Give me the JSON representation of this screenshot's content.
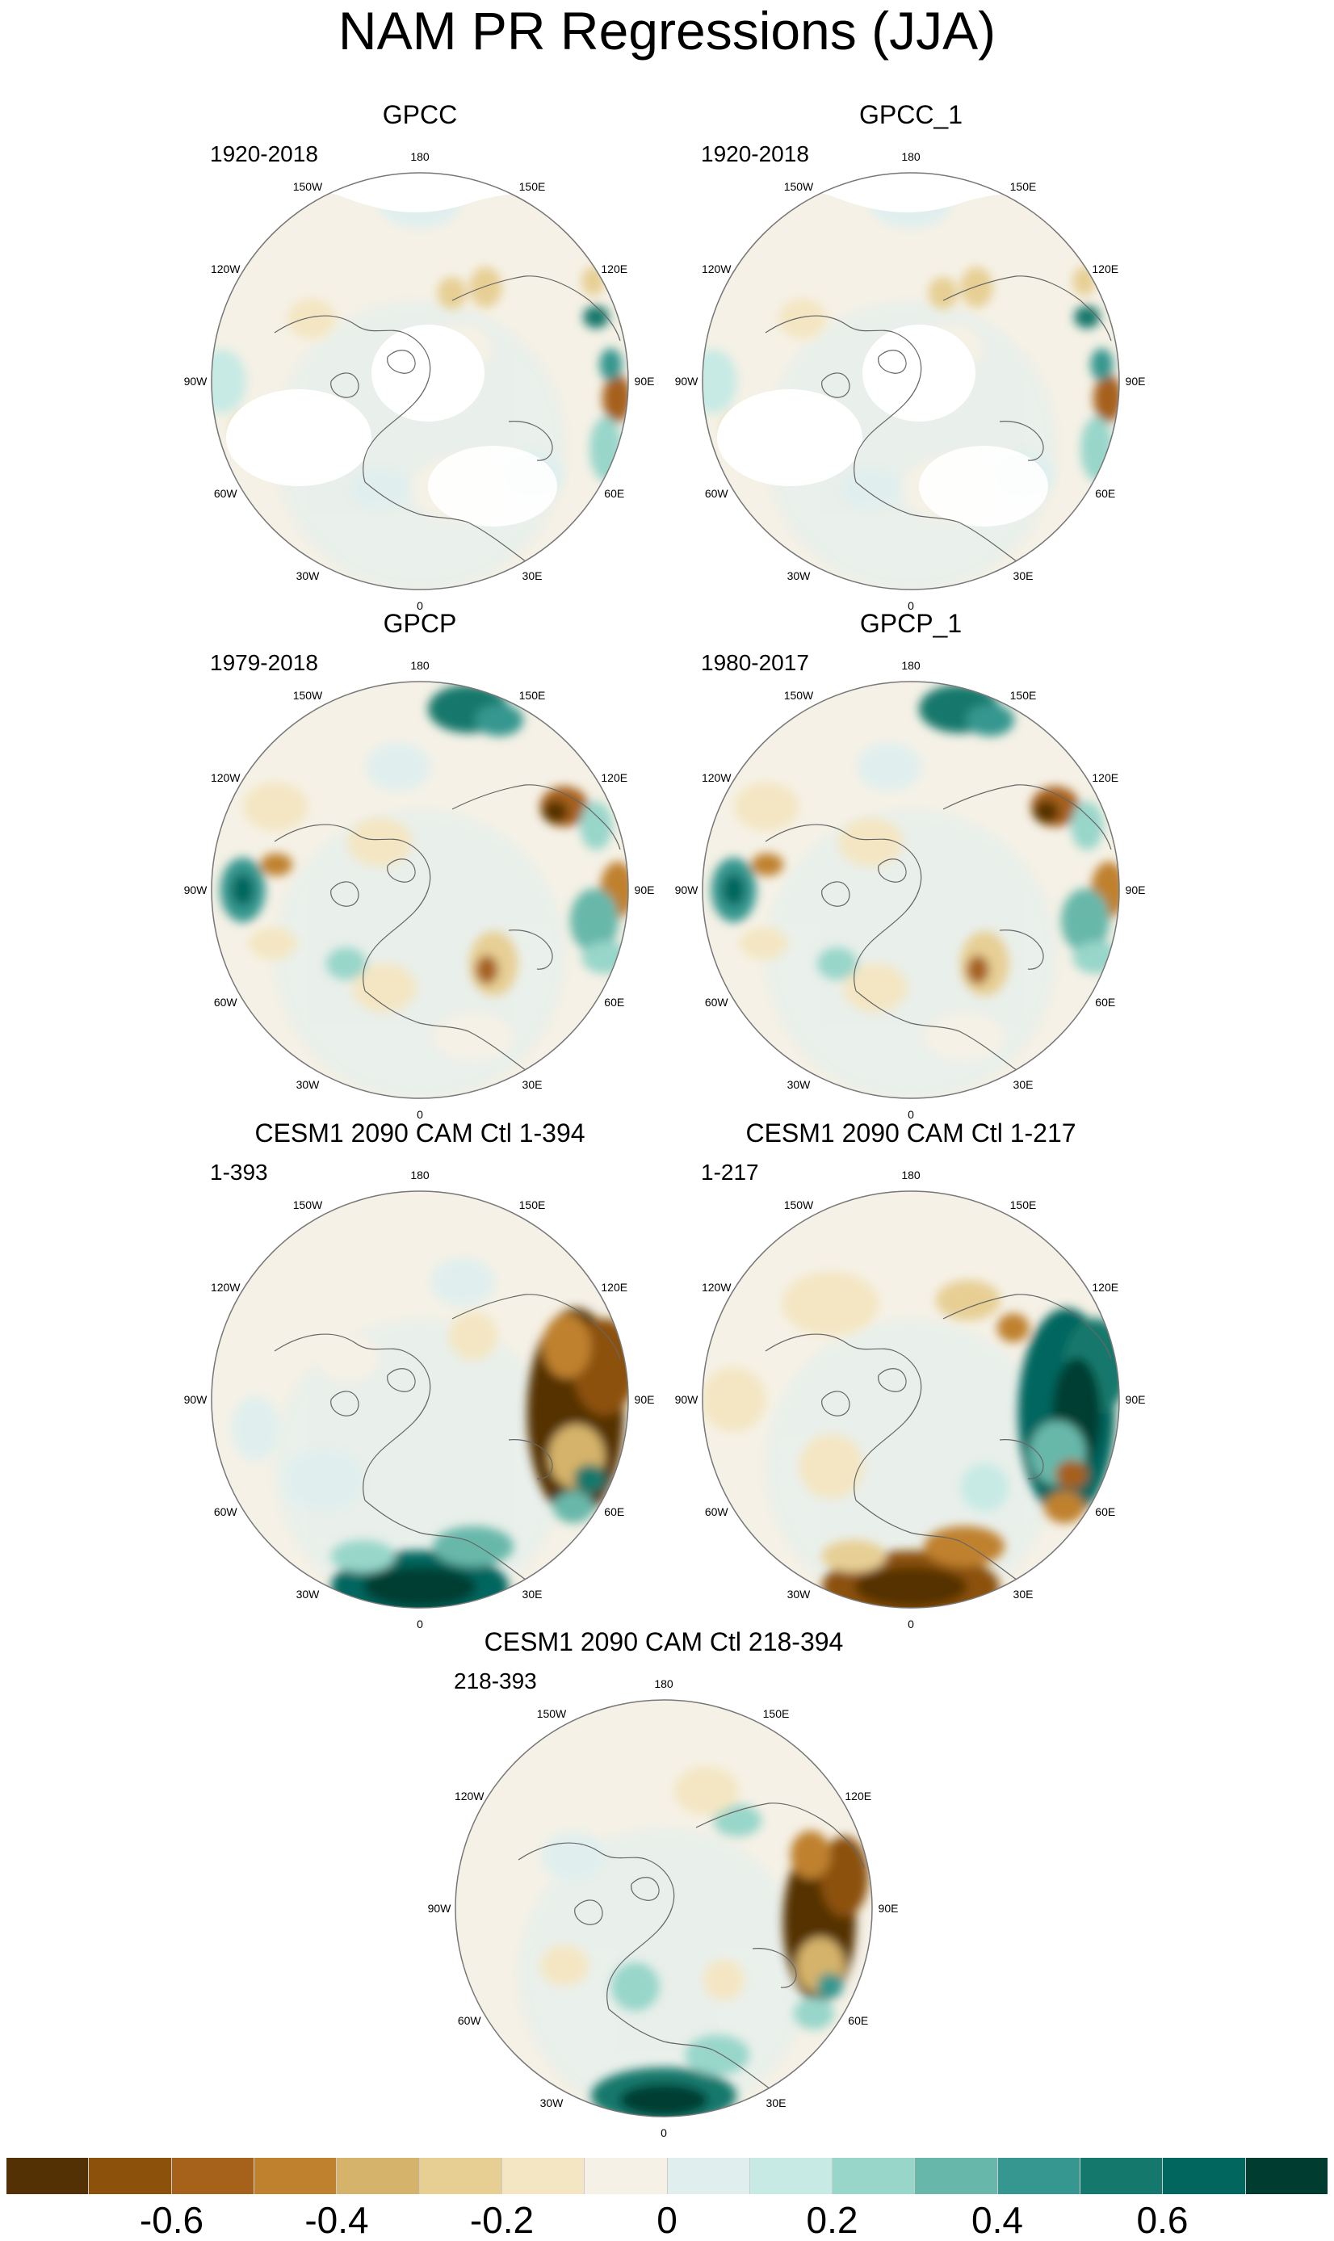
{
  "title": "NAM PR Regressions (JJA)",
  "panels": [
    {
      "title": "GPCC",
      "period": "1920-2018",
      "pattern": "gpcc"
    },
    {
      "title": "GPCC_1",
      "period": "1920-2018",
      "pattern": "gpcc"
    },
    {
      "title": "GPCP",
      "period": "1979-2018",
      "pattern": "gpcp"
    },
    {
      "title": "GPCP_1",
      "period": "1980-2017",
      "pattern": "gpcp"
    },
    {
      "title": "CESM1 2090 CAM Ctl 1-394",
      "period": "1-393",
      "pattern": "cesm_a"
    },
    {
      "title": "CESM1 2090 CAM Ctl 1-217",
      "period": "1-217",
      "pattern": "cesm_b"
    },
    {
      "title": "CESM1 2090 CAM Ctl 218-394",
      "period": "218-393",
      "pattern": "cesm_c"
    }
  ],
  "longitude_labels": [
    "180",
    "150E",
    "120E",
    "90E",
    "60E",
    "30E",
    "0",
    "30W",
    "60W",
    "90W",
    "120W",
    "150W"
  ],
  "colorbar": {
    "colors": [
      "#543005",
      "#8c510a",
      "#a6611a",
      "#bf812d",
      "#d5b36b",
      "#e7cf94",
      "#f4e6c3",
      "#f5f1e6",
      "#e0efee",
      "#c7eae5",
      "#98d6ca",
      "#67b8aa",
      "#35978f",
      "#14786c",
      "#01665e",
      "#003c30"
    ],
    "tick_labels": [
      "-0.6",
      "-0.4",
      "-0.2",
      "0",
      "0.2",
      "0.4",
      "0.6"
    ]
  }
}
